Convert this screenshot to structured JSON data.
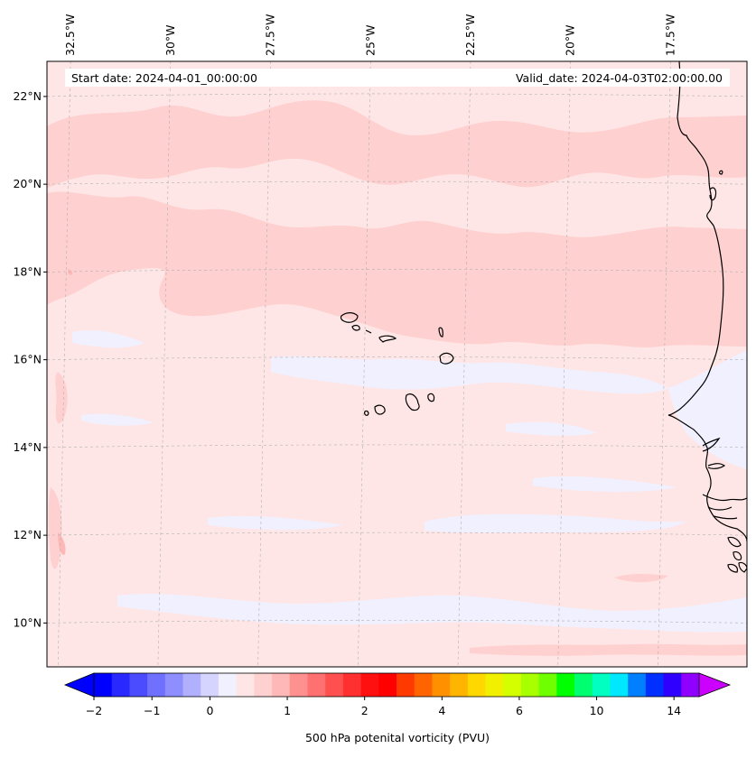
{
  "header": {
    "start_date": "Start date: 2024-04-01_00:00:00",
    "valid_date": "Valid_date: 2024-04-03T02:00:00.00"
  },
  "map": {
    "extent": {
      "lon": [
        -33.0,
        -15.5
      ],
      "lat": [
        9.0,
        22.8
      ]
    },
    "lon_gridlines": [
      {
        "value": -32.5,
        "label": "32.5°W"
      },
      {
        "value": -30.0,
        "label": "30°W"
      },
      {
        "value": -27.5,
        "label": "27.5°W"
      },
      {
        "value": -25.0,
        "label": "25°W"
      },
      {
        "value": -22.5,
        "label": "22.5°W"
      },
      {
        "value": -20.0,
        "label": "20°W"
      },
      {
        "value": -17.5,
        "label": "17.5°W"
      }
    ],
    "lat_gridlines": [
      {
        "value": 22,
        "label": "22°N"
      },
      {
        "value": 20,
        "label": "20°N"
      },
      {
        "value": 18,
        "label": "18°N"
      },
      {
        "value": 16,
        "label": "16°N"
      },
      {
        "value": 14,
        "label": "14°N"
      },
      {
        "value": 12,
        "label": "12°N"
      },
      {
        "value": 10,
        "label": "10°N"
      }
    ],
    "field_colors": {
      "background": "#ffe6e6",
      "pos_low": "#ffd0d0",
      "pos_mid": "#ffb8b8",
      "neg_low": "#f0f0ff"
    },
    "islands": [
      "Santo Antão",
      "São Vicente",
      "Santa Luzia",
      "São Nicolau",
      "Sal",
      "Boa Vista",
      "Maio",
      "Santiago",
      "Fogo",
      "Brava"
    ]
  },
  "colorbar": {
    "label": "500 hPa potenital vorticity (PVU)",
    "ticks": [
      {
        "index": 0,
        "label": "−2"
      },
      {
        "index": 3,
        "label": "−1"
      },
      {
        "index": 6,
        "label": "0"
      },
      {
        "index": 10,
        "label": "1"
      },
      {
        "index": 14,
        "label": "2"
      },
      {
        "index": 18,
        "label": "4"
      },
      {
        "index": 22,
        "label": "6"
      },
      {
        "index": 26,
        "label": "10"
      },
      {
        "index": 30,
        "label": "14"
      }
    ],
    "colors": [
      "#0000ff",
      "#2828ff",
      "#4c4cff",
      "#7070ff",
      "#8e8eff",
      "#b0b0ff",
      "#d4d4ff",
      "#f0f0ff",
      "#ffe6e6",
      "#ffd0d0",
      "#ffb8b8",
      "#ff9090",
      "#ff7070",
      "#ff5050",
      "#ff3030",
      "#ff1010",
      "#ff0000",
      "#ff3a00",
      "#ff6400",
      "#ff9000",
      "#ffb400",
      "#ffd800",
      "#f0f000",
      "#d4ff00",
      "#a8ff00",
      "#70ff00",
      "#00ff00",
      "#00ff70",
      "#00ffc0",
      "#00e8ff",
      "#0080ff",
      "#0030ff",
      "#3000ff",
      "#9000ff"
    ],
    "extend_colors": {
      "min": "#0000ff",
      "max": "#cc00ff"
    }
  }
}
